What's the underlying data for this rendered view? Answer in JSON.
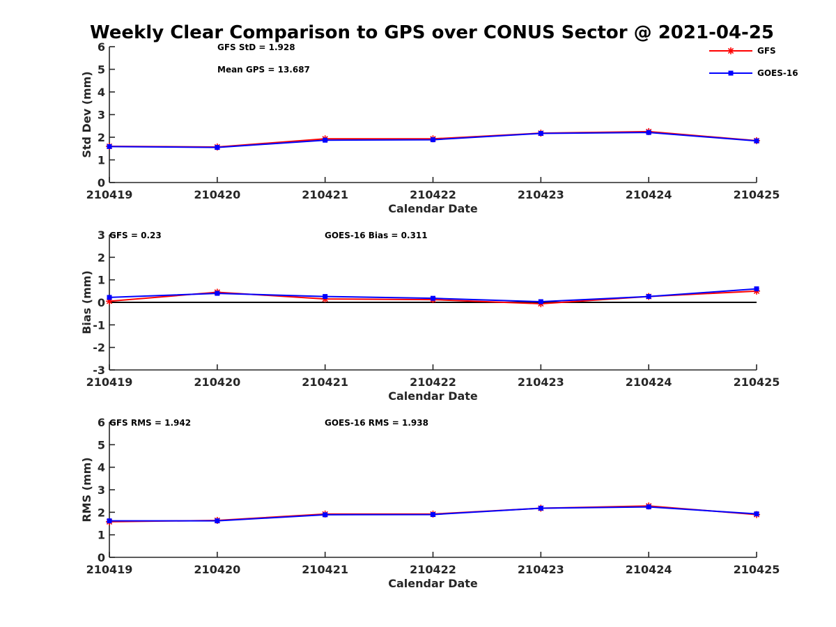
{
  "colors": {
    "gfs": "#ff0000",
    "goes": "#0000ff"
  },
  "legend": [
    {
      "name": "GFS",
      "color": "#ff0000",
      "marker": "asterisk"
    },
    {
      "name": "GOES-16",
      "color": "#0000ff",
      "marker": "square"
    }
  ],
  "chart_data": [
    {
      "type": "line",
      "title": "Weekly Clear Comparison to GPS over CONUS Sector @ 2021-04-25",
      "xlabel": "Calendar Date",
      "ylabel": "Std Dev (mm)",
      "categories": [
        "210419",
        "210420",
        "210421",
        "210422",
        "210423",
        "210424",
        "210425"
      ],
      "ylim": [
        0,
        6
      ],
      "yticks": [
        0,
        1,
        2,
        3,
        4,
        5,
        6
      ],
      "annotations": [
        {
          "text": "GFS StD = 1.928"
        },
        {
          "text": "Mean GPS = 13.687"
        }
      ],
      "series": [
        {
          "name": "GFS",
          "color": "#ff0000",
          "marker": "asterisk",
          "values": [
            1.6,
            1.57,
            1.93,
            1.93,
            2.18,
            2.25,
            1.85
          ]
        },
        {
          "name": "GOES-16",
          "color": "#0000ff",
          "marker": "square",
          "values": [
            1.59,
            1.55,
            1.87,
            1.89,
            2.17,
            2.21,
            1.84
          ]
        }
      ]
    },
    {
      "type": "line",
      "xlabel": "Calendar Date",
      "ylabel": "Bias (mm)",
      "categories": [
        "210419",
        "210420",
        "210421",
        "210422",
        "210423",
        "210424",
        "210425"
      ],
      "ylim": [
        -3,
        3
      ],
      "yticks": [
        -3,
        -2,
        -1,
        0,
        1,
        2,
        3
      ],
      "zero_line": true,
      "annotations": [
        {
          "text": "GFS = 0.23"
        },
        {
          "text": "GOES-16 Bias  = 0.311"
        }
      ],
      "series": [
        {
          "name": "GFS",
          "color": "#ff0000",
          "marker": "asterisk",
          "values": [
            0.05,
            0.45,
            0.15,
            0.12,
            -0.06,
            0.26,
            0.5
          ]
        },
        {
          "name": "GOES-16",
          "color": "#0000ff",
          "marker": "square",
          "values": [
            0.22,
            0.4,
            0.26,
            0.18,
            0.03,
            0.26,
            0.6
          ]
        }
      ]
    },
    {
      "type": "line",
      "xlabel": "Calendar Date",
      "ylabel": "RMS (mm)",
      "categories": [
        "210419",
        "210420",
        "210421",
        "210422",
        "210423",
        "210424",
        "210425"
      ],
      "ylim": [
        0,
        6
      ],
      "yticks": [
        0,
        1,
        2,
        3,
        4,
        5,
        6
      ],
      "annotations": [
        {
          "text": "GFS RMS = 1.942"
        },
        {
          "text": "GOES-16 RMS = 1.938"
        }
      ],
      "series": [
        {
          "name": "GFS",
          "color": "#ff0000",
          "marker": "asterisk",
          "values": [
            1.58,
            1.64,
            1.92,
            1.92,
            2.18,
            2.28,
            1.9
          ]
        },
        {
          "name": "GOES-16",
          "color": "#0000ff",
          "marker": "square",
          "values": [
            1.62,
            1.62,
            1.89,
            1.9,
            2.18,
            2.24,
            1.93
          ]
        }
      ]
    }
  ]
}
